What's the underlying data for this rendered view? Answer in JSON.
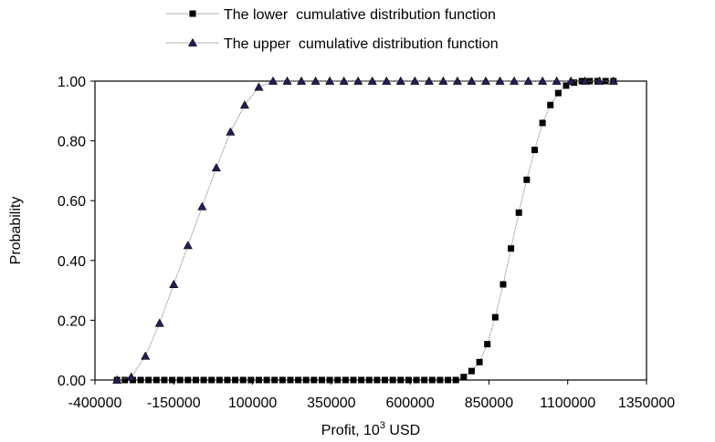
{
  "chart_data": {
    "type": "line",
    "title": "",
    "xlabel": "Profit, 10",
    "xlabel_superscript": "3",
    "xlabel_suffix": " USD",
    "ylabel": "Probability",
    "xlim": [
      -400000,
      1350000
    ],
    "ylim": [
      0,
      1
    ],
    "x_ticks": [
      -400000,
      -150000,
      100000,
      350000,
      600000,
      850000,
      1100000,
      1350000
    ],
    "x_tick_labels": [
      "-400000",
      "-150000",
      "100000",
      "350000",
      "600000",
      "850000",
      "1100000",
      "1350000"
    ],
    "y_ticks": [
      0,
      0.2,
      0.4,
      0.6,
      0.8,
      1.0
    ],
    "y_tick_labels": [
      "0.00",
      "0.20",
      "0.40",
      "0.60",
      "0.80",
      "1.00"
    ],
    "grid": false,
    "legend_position": "top-center",
    "line_color": "#808080",
    "marker_color": "#000000",
    "marker_fill_upper": "#1f1f5a",
    "series": [
      {
        "name": "The lower  cumulative distribution function",
        "marker": "square",
        "x": [
          -330000,
          -305000,
          -280000,
          -255000,
          -230000,
          -205000,
          -180000,
          -155000,
          -130000,
          -105000,
          -80000,
          -55000,
          -30000,
          -5000,
          20000,
          45000,
          70000,
          95000,
          120000,
          145000,
          170000,
          195000,
          220000,
          245000,
          270000,
          295000,
          320000,
          345000,
          370000,
          395000,
          420000,
          445000,
          470000,
          495000,
          520000,
          545000,
          570000,
          595000,
          620000,
          645000,
          670000,
          695000,
          720000,
          745000,
          770000,
          795000,
          820000,
          845000,
          870000,
          895000,
          920000,
          945000,
          970000,
          995000,
          1020000,
          1045000,
          1070000,
          1095000,
          1120000,
          1145000,
          1170000,
          1195000,
          1220000,
          1245000
        ],
        "y": [
          0,
          0,
          0,
          0,
          0,
          0,
          0,
          0,
          0,
          0,
          0,
          0,
          0,
          0,
          0,
          0,
          0,
          0,
          0,
          0,
          0,
          0,
          0,
          0,
          0,
          0,
          0,
          0,
          0,
          0,
          0,
          0,
          0,
          0,
          0,
          0,
          0,
          0,
          0,
          0,
          0,
          0,
          0,
          0,
          0.01,
          0.03,
          0.06,
          0.12,
          0.21,
          0.32,
          0.44,
          0.56,
          0.67,
          0.77,
          0.86,
          0.92,
          0.96,
          0.985,
          0.995,
          1.0,
          1.0,
          1.0,
          1.0,
          1.0
        ]
      },
      {
        "name": "The upper  cumulative distribution function",
        "marker": "triangle",
        "x": [
          -330000,
          -285000,
          -240000,
          -195000,
          -150000,
          -105000,
          -60000,
          -15000,
          30000,
          75000,
          120000,
          165000,
          210000,
          255000,
          300000,
          345000,
          390000,
          435000,
          480000,
          525000,
          570000,
          615000,
          660000,
          705000,
          750000,
          795000,
          840000,
          885000,
          930000,
          975000,
          1020000,
          1065000,
          1110000,
          1155000,
          1200000,
          1245000
        ],
        "y": [
          0,
          0.01,
          0.08,
          0.19,
          0.32,
          0.45,
          0.58,
          0.71,
          0.83,
          0.92,
          0.98,
          1.0,
          1.0,
          1.0,
          1.0,
          1.0,
          1.0,
          1.0,
          1.0,
          1.0,
          1.0,
          1.0,
          1.0,
          1.0,
          1.0,
          1.0,
          1.0,
          1.0,
          1.0,
          1.0,
          1.0,
          1.0,
          1.0,
          1.0,
          1.0,
          1.0
        ]
      }
    ]
  }
}
